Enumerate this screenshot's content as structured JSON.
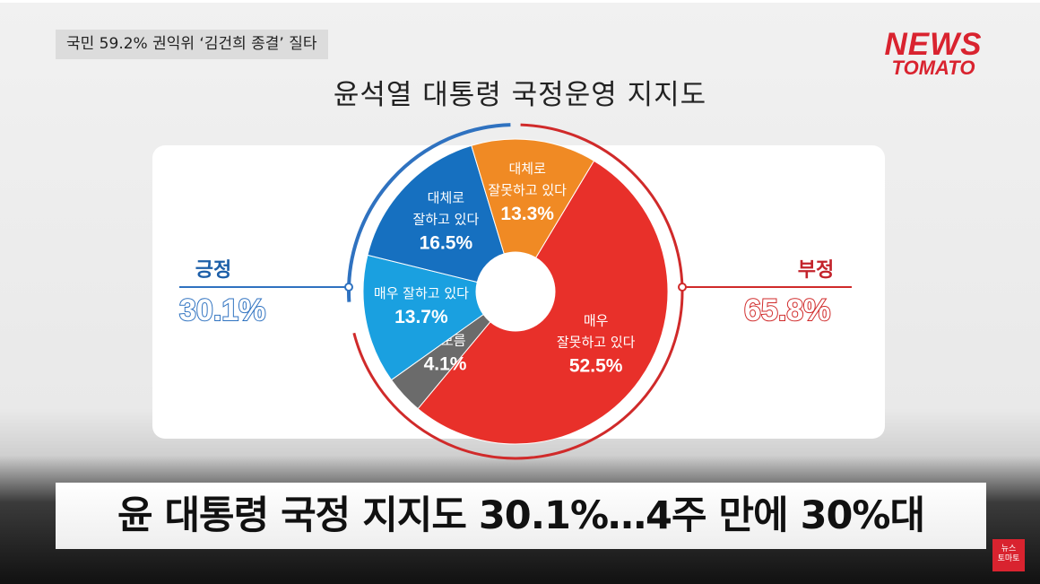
{
  "headline": "국민 59.2% 권익위 ‘김건희 종결’ 질타",
  "logo": {
    "line1": "NEWS",
    "line2": "TOMATO"
  },
  "positive": {
    "label": "긍정",
    "value": "30.1%",
    "color": "#2f72c0"
  },
  "negative": {
    "label": "부정",
    "value": "65.8%",
    "color": "#d02a2a"
  },
  "caption": "윤 대통령 국정 지지도 30.1%…4주 만에 30%대",
  "small_logo": {
    "line1": "뉴스",
    "line2": "토마토"
  },
  "chart_data": {
    "type": "pie",
    "title": "윤석열 대통령 국정운영 지지도",
    "slices": [
      {
        "label": "매우\n잘못하고 있다",
        "value": 52.5,
        "value_text": "52.5%",
        "color": "#e8302a"
      },
      {
        "label": "잘 모름",
        "value": 4.1,
        "value_text": "4.1%",
        "color": "#6b6b6b"
      },
      {
        "label": "매우 잘하고 있다",
        "value": 13.7,
        "value_text": "13.7%",
        "color": "#1aa0e0"
      },
      {
        "label": "대체로\n잘하고 있다",
        "value": 16.5,
        "value_text": "16.5%",
        "color": "#1670c0"
      },
      {
        "label": "대체로\n잘못하고 있다",
        "value": 13.3,
        "value_text": "13.3%",
        "color": "#f08a24"
      }
    ]
  }
}
